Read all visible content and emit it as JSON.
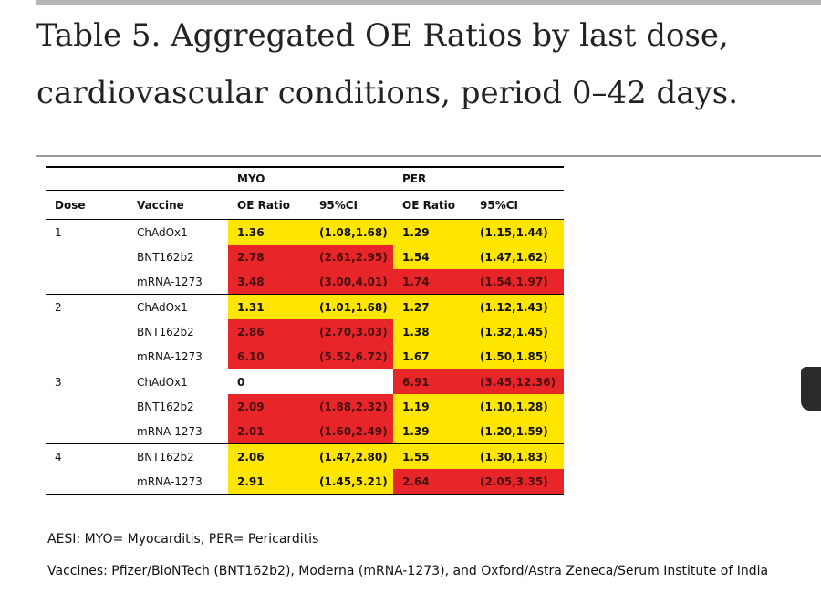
{
  "title": "Table 5. Aggregated OE Ratios by last dose, cardiovascular conditions, period 0–42 days.",
  "table": {
    "group_headers": [
      "",
      "",
      "MYO",
      "",
      "PER",
      ""
    ],
    "column_headers": [
      "Dose",
      "Vaccine",
      "OE Ratio",
      "95%CI",
      "OE Ratio",
      "95%CI"
    ],
    "highlight_colors": {
      "yellow": "#ffe600",
      "red": "#e8262a"
    },
    "rows": [
      {
        "dose": "1",
        "vaccine": "ChAdOx1",
        "myo_oe": "1.36",
        "myo_ci": "(1.08,1.68)",
        "per_oe": "1.29",
        "per_ci": "(1.15,1.44)",
        "myo_color": "yellow",
        "per_color": "yellow"
      },
      {
        "dose": "",
        "vaccine": "BNT162b2",
        "myo_oe": "2.78",
        "myo_ci": "(2.61,2.95)",
        "per_oe": "1.54",
        "per_ci": "(1.47,1.62)",
        "myo_color": "red",
        "per_color": "yellow"
      },
      {
        "dose": "",
        "vaccine": "mRNA-1273",
        "myo_oe": "3.48",
        "myo_ci": "(3.00,4.01)",
        "per_oe": "1.74",
        "per_ci": "(1.54,1.97)",
        "myo_color": "red",
        "per_color": "red"
      },
      {
        "dose": "2",
        "vaccine": "ChAdOx1",
        "myo_oe": "1.31",
        "myo_ci": "(1.01,1.68)",
        "per_oe": "1.27",
        "per_ci": "(1.12,1.43)",
        "myo_color": "yellow",
        "per_color": "yellow"
      },
      {
        "dose": "",
        "vaccine": "BNT162b2",
        "myo_oe": "2.86",
        "myo_ci": "(2.70,3.03)",
        "per_oe": "1.38",
        "per_ci": "(1.32,1.45)",
        "myo_color": "red",
        "per_color": "yellow"
      },
      {
        "dose": "",
        "vaccine": "mRNA-1273",
        "myo_oe": "6.10",
        "myo_ci": "(5.52,6.72)",
        "per_oe": "1.67",
        "per_ci": "(1.50,1.85)",
        "myo_color": "red",
        "per_color": "yellow"
      },
      {
        "dose": "3",
        "vaccine": "ChAdOx1",
        "myo_oe": "0",
        "myo_ci": "",
        "per_oe": "6.91",
        "per_ci": "(3.45,12.36)",
        "myo_color": "none",
        "per_color": "red"
      },
      {
        "dose": "",
        "vaccine": "BNT162b2",
        "myo_oe": "2.09",
        "myo_ci": "(1.88,2.32)",
        "per_oe": "1.19",
        "per_ci": "(1.10,1.28)",
        "myo_color": "red",
        "per_color": "yellow"
      },
      {
        "dose": "",
        "vaccine": "mRNA-1273",
        "myo_oe": "2.01",
        "myo_ci": "(1.60,2.49)",
        "per_oe": "1.39",
        "per_ci": "(1.20,1.59)",
        "myo_color": "red",
        "per_color": "yellow"
      },
      {
        "dose": "4",
        "vaccine": "BNT162b2",
        "myo_oe": "2.06",
        "myo_ci": "(1.47,2.80)",
        "per_oe": "1.55",
        "per_ci": "(1.30,1.83)",
        "myo_color": "yellow",
        "per_color": "yellow"
      },
      {
        "dose": "",
        "vaccine": "mRNA-1273",
        "myo_oe": "2.91",
        "myo_ci": "(1.45,5.21)",
        "per_oe": "2.64",
        "per_ci": "(2.05,3.35)",
        "myo_color": "yellow",
        "per_color": "red"
      }
    ]
  },
  "footnotes": {
    "aesi": "AESI: MYO= Myocarditis, PER= Pericarditis",
    "vaccines": "Vaccines: Pfizer/BioNTech (BNT162b2), Moderna (mRNA-1273), and Oxford/Astra Zeneca/Serum Institute of India"
  }
}
